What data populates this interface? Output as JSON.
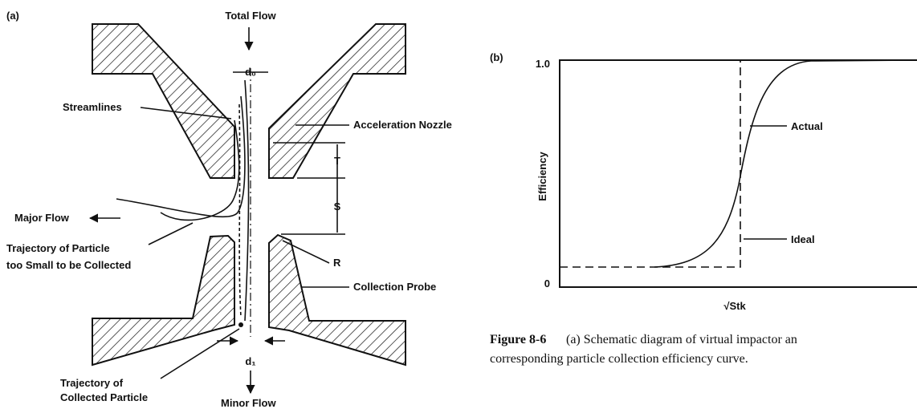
{
  "panel_a": {
    "label": "(a)",
    "total_flow": "Total Flow",
    "nozzle_width": "d₀",
    "streamlines": "Streamlines",
    "acceleration_nozzle": "Acceleration Nozzle",
    "gap_t": "T",
    "gap_s": "S",
    "major_flow": "Major Flow",
    "small_particle": [
      "Trajectory of Particle",
      "too Small to be Collected"
    ],
    "radius": "R",
    "collection_probe": "Collection Probe",
    "probe_width": "d₁",
    "collected_particle": [
      "Trajectory of",
      "Collected Particle"
    ],
    "minor_flow": "Minor Flow"
  },
  "panel_b": {
    "label": "(b)",
    "y_axis": "Efficiency",
    "x_axis": "√Stk",
    "y_ticks": [
      "1.0",
      "0"
    ],
    "curves": [
      "Actual",
      "Ideal"
    ]
  },
  "caption": {
    "number": "Figure 8-6",
    "lines": [
      "(a) Schematic diagram of virtual impactor an",
      "corresponding particle collection efficiency curve."
    ]
  }
}
